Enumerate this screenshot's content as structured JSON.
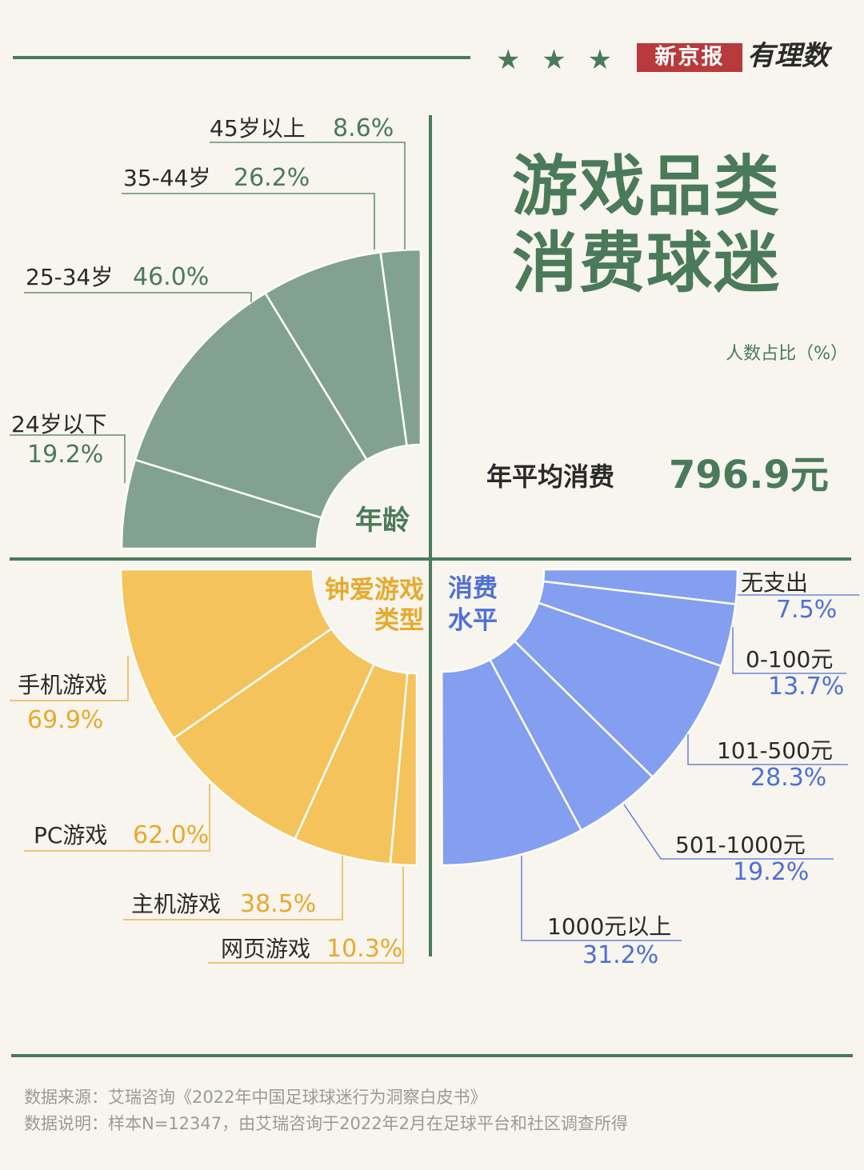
{
  "brand": {
    "name": "新京报",
    "column": "有理数",
    "stars": "★ ★ ★"
  },
  "title": {
    "line1": "游戏品类",
    "line2": "消费球迷"
  },
  "unit_note": "人数占比（%）",
  "average": {
    "label": "年平均消费",
    "value": "796.9元"
  },
  "colors": {
    "green": "#82a28f",
    "green_text": "#4a7a5a",
    "green_line": "#4a7a5a",
    "yellow": "#f5c35c",
    "yellow_text": "#e9a92c",
    "blue": "#849ef0",
    "blue_text": "#4f6fd8",
    "background": "#f7f5ed",
    "dark_text": "#2a2a2a"
  },
  "chart_data": [
    {
      "type": "pie",
      "title": "年龄",
      "categories": [
        "24岁以下",
        "25-34岁",
        "35-44岁",
        "45岁以上"
      ],
      "values": [
        19.2,
        46.0,
        26.2,
        8.6
      ],
      "value_labels": [
        "19.2%",
        "46.0%",
        "26.2%",
        "8.6%"
      ]
    },
    {
      "type": "pie",
      "title": "钟爱游戏类型",
      "categories": [
        "手机游戏",
        "PC游戏",
        "主机游戏",
        "网页游戏"
      ],
      "values": [
        69.9,
        62.0,
        38.5,
        10.3
      ],
      "value_labels": [
        "69.9%",
        "62.0%",
        "38.5%",
        "10.3%"
      ]
    },
    {
      "type": "pie",
      "title": "消费水平",
      "categories": [
        "无支出",
        "0-100元",
        "101-500元",
        "501-1000元",
        "1000元以上"
      ],
      "values": [
        7.5,
        13.7,
        28.3,
        19.2,
        31.2
      ],
      "value_labels": [
        "7.5%",
        "13.7%",
        "28.3%",
        "19.2%",
        "31.2%"
      ]
    }
  ],
  "footer": {
    "source": "数据来源：艾瑞咨询《2022年中国足球球迷行为洞察白皮书》",
    "note": "数据说明：样本N=12347，由艾瑞咨询于2022年2月在足球平台和社区调查所得"
  }
}
